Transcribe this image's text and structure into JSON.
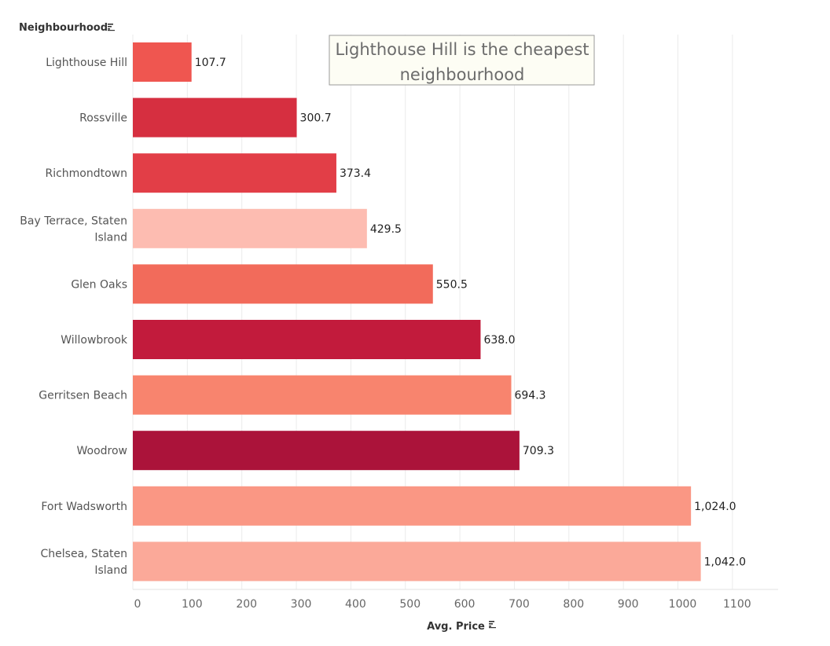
{
  "chart_data": {
    "type": "bar",
    "orientation": "horizontal",
    "ylabel": "Neighbourhood",
    "xlabel": "Avg. Price",
    "sort_icon": "sort-descending-icon",
    "xlim": [
      0,
      1180
    ],
    "x_ticks": [
      "0",
      "100",
      "200",
      "300",
      "400",
      "500",
      "600",
      "700",
      "800",
      "900",
      "1000",
      "1100"
    ],
    "annotation": "Lighthouse Hill is the cheapest neighbourhood",
    "grid": "vertical",
    "categories": [
      [
        "Lighthouse Hill"
      ],
      [
        "Rossville"
      ],
      [
        "Richmondtown"
      ],
      [
        "Bay Terrace, Staten",
        "Island"
      ],
      [
        "Glen Oaks"
      ],
      [
        "Willowbrook"
      ],
      [
        "Gerritsen Beach"
      ],
      [
        "Woodrow"
      ],
      [
        "Fort Wadsworth"
      ],
      [
        "Chelsea, Staten",
        "Island"
      ]
    ],
    "values": [
      107.7,
      300.7,
      373.4,
      429.5,
      550.5,
      638.0,
      694.3,
      709.3,
      1024.0,
      1042.0
    ],
    "value_labels": [
      "107.7",
      "300.7",
      "373.4",
      "429.5",
      "550.5",
      "638.0",
      "694.3",
      "709.3",
      "1,024.0",
      "1,042.0"
    ],
    "colors": [
      "#ef5650",
      "#d62f40",
      "#e23e47",
      "#fdbcb1",
      "#f26b5b",
      "#c21b3c",
      "#f8846e",
      "#ab133a",
      "#fa9784",
      "#fba999"
    ]
  }
}
